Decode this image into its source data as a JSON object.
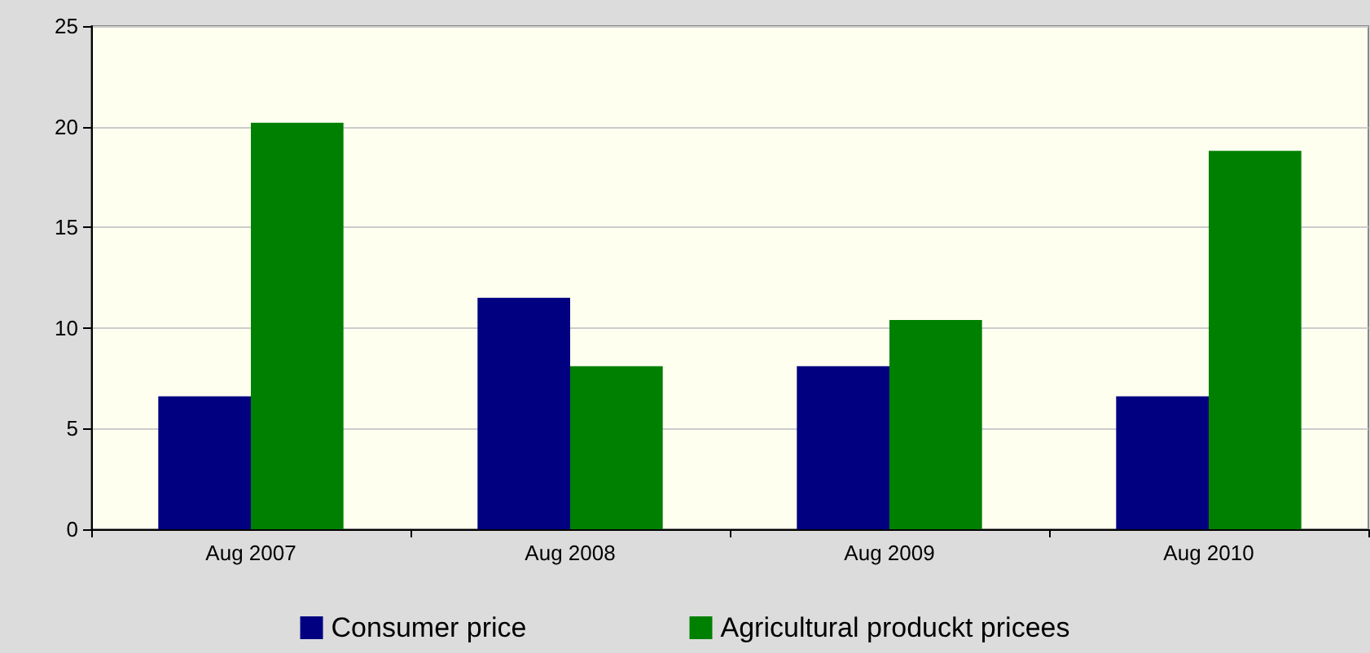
{
  "chart_data": {
    "type": "bar",
    "categories": [
      "Aug 2007",
      "Aug 2008",
      "Aug 2009",
      "Aug 2010"
    ],
    "series": [
      {
        "name": "Consumer price",
        "color": "#000080",
        "values": [
          6.6,
          11.5,
          8.1,
          6.6
        ]
      },
      {
        "name": "Agricultural produckt pricees",
        "color": "#008000",
        "values": [
          20.2,
          8.1,
          10.4,
          18.8
        ]
      }
    ],
    "ylim": [
      0,
      25
    ],
    "yticks": [
      0,
      5,
      10,
      15,
      20,
      25
    ],
    "grid": "y",
    "legend": "bottom"
  }
}
